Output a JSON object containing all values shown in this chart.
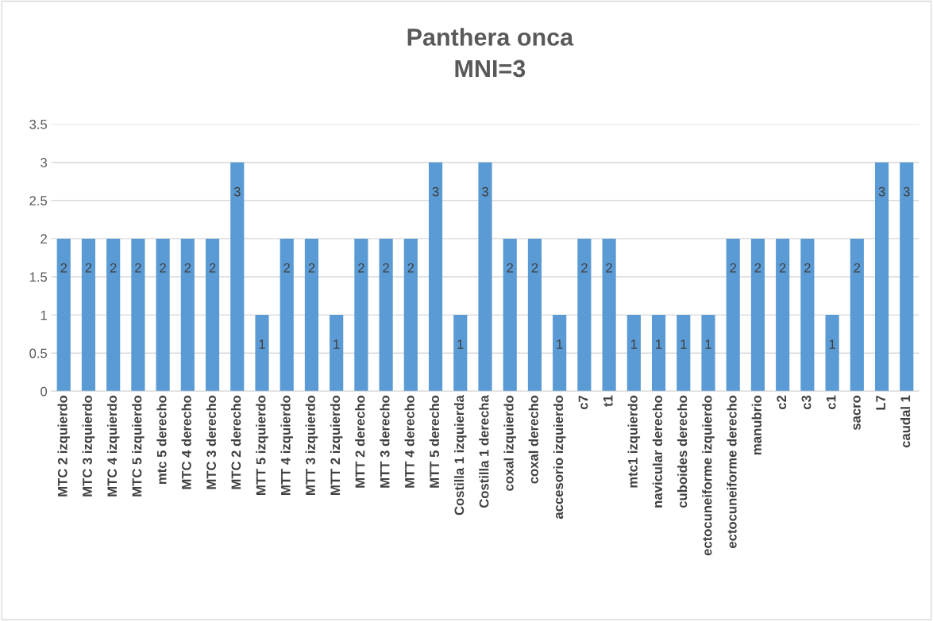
{
  "chart_data": {
    "type": "bar",
    "title": "Panthera onca\nMNI=3",
    "categories": [
      "MTC 2 izquierdo",
      "MTC 3 izquierdo",
      "MTC 4 izquierdo",
      "MTC 5 izquierdo",
      "mtc 5 derecho",
      "MTC 4 derecho",
      "MTC 3 derecho",
      "MTC 2 derecho",
      "MTT 5 izquierdo",
      "MTT 4 izquierdo",
      "MTT 3 izquierdo",
      "MTT 2 izquierdo",
      "MTT 2 derecho",
      "MTT 3 derecho",
      "MTT 4 derecho",
      "MTT 5 derecho",
      "Costilla 1 izquierda",
      "Costilla 1 derecha",
      "coxal izquierdo",
      "coxal derecho",
      "accesorio izquierdo",
      "c7",
      "t1",
      "mtc1 izquierdo",
      "navicular derecho",
      "cuboides derecho",
      "ectocuneiforme izquierdo",
      "ectocuneiforme derecho",
      "manubrio",
      "c2",
      "c3",
      "c1",
      "sacro",
      "L7",
      "caudal 1"
    ],
    "values": [
      2,
      2,
      2,
      2,
      2,
      2,
      2,
      3,
      1,
      2,
      2,
      1,
      2,
      2,
      2,
      3,
      1,
      3,
      2,
      2,
      1,
      2,
      2,
      1,
      1,
      1,
      1,
      2,
      2,
      2,
      2,
      1,
      2,
      3,
      3
    ],
    "color": "#5b9bd5",
    "ylim": [
      0,
      3.5
    ],
    "yticks": [
      0,
      0.5,
      1,
      1.5,
      2,
      2.5,
      3,
      3.5
    ],
    "grid": "y",
    "data_labels": true
  }
}
